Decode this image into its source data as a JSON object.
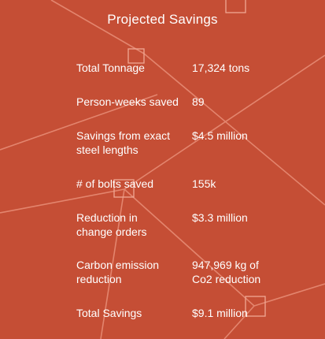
{
  "title": "Projected Savings",
  "colors": {
    "background": "#c54e35",
    "text": "#ffffff",
    "lines": "#e98f78"
  },
  "rows": [
    {
      "label": "Total Tonnage",
      "value": "17,324 tons"
    },
    {
      "label": "Person-weeks saved",
      "value": "89"
    },
    {
      "label": "Savings from exact steel lengths",
      "value": "$4.5 million"
    },
    {
      "label": "# of bolts saved",
      "value": "155k"
    },
    {
      "label": "Reduction in change orders",
      "value": "$3.3 million"
    },
    {
      "label": "Carbon emission reduction",
      "value": "947,969 kg of Co2 reduction"
    },
    {
      "label": "Total Savings",
      "value": "$9.1 million"
    }
  ]
}
